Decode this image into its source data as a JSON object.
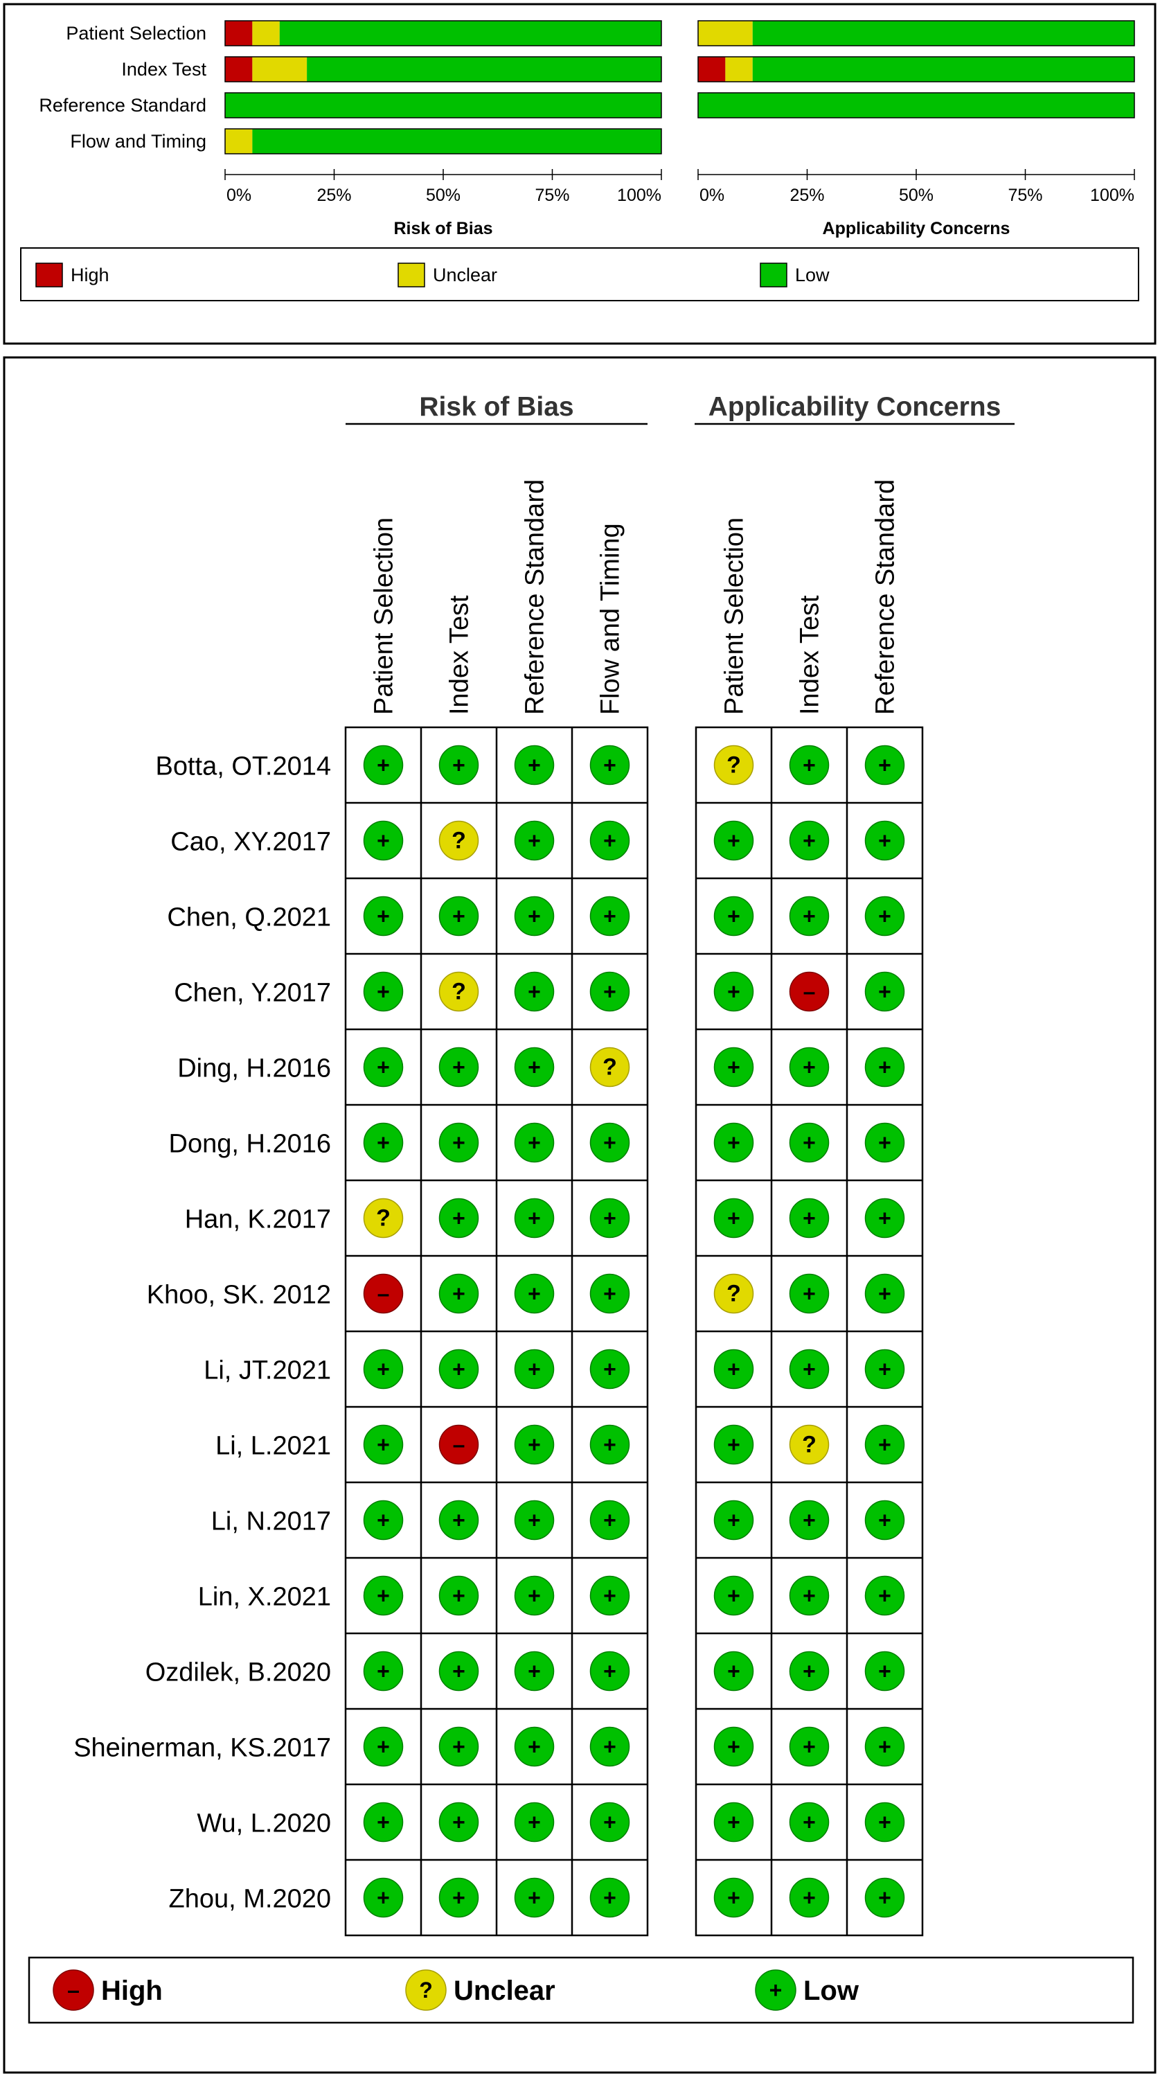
{
  "colors": {
    "high": "#c00000",
    "unclear": "#e1d900",
    "low": "#00c000",
    "high_dark": "#800000",
    "unclear_dark": "#a89f00",
    "low_dark": "#008000"
  },
  "chart_data": [
    {
      "type": "bar",
      "stacked": true,
      "orientation": "horizontal",
      "unit": "percent",
      "categories": [
        "Patient Selection",
        "Index Test",
        "Reference Standard",
        "Flow and Timing"
      ],
      "panels": [
        {
          "title": "Risk of Bias",
          "series": [
            {
              "name": "High",
              "values": [
                6.25,
                6.25,
                0,
                0
              ]
            },
            {
              "name": "Unclear",
              "values": [
                6.25,
                12.5,
                0,
                6.25
              ]
            },
            {
              "name": "Low",
              "values": [
                87.5,
                81.25,
                100,
                93.75
              ]
            }
          ]
        },
        {
          "title": "Applicability Concerns",
          "series": [
            {
              "name": "High",
              "values": [
                0,
                6.25,
                0
              ]
            },
            {
              "name": "Unclear",
              "values": [
                12.5,
                6.25,
                0
              ]
            },
            {
              "name": "Low",
              "values": [
                87.5,
                87.5,
                100
              ]
            }
          ]
        }
      ],
      "xlim": [
        0,
        100
      ],
      "xticks": [
        "0%",
        "25%",
        "50%",
        "75%",
        "100%"
      ],
      "legend": [
        {
          "key": "high",
          "label": "High"
        },
        {
          "key": "unclear",
          "label": "Unclear"
        },
        {
          "key": "low",
          "label": "Low"
        }
      ]
    },
    {
      "type": "table",
      "groups": [
        {
          "title": "Risk of Bias",
          "columns": [
            "Patient Selection",
            "Index Test",
            "Reference Standard",
            "Flow and Timing"
          ]
        },
        {
          "title": "Applicability Concerns",
          "columns": [
            "Patient Selection",
            "Index Test",
            "Reference Standard"
          ]
        }
      ],
      "rows": [
        {
          "study": "Botta, OT.2014",
          "rob": [
            "low",
            "low",
            "low",
            "low"
          ],
          "app": [
            "unclear",
            "low",
            "low"
          ]
        },
        {
          "study": "Cao, XY.2017",
          "rob": [
            "low",
            "unclear",
            "low",
            "low"
          ],
          "app": [
            "low",
            "low",
            "low"
          ]
        },
        {
          "study": "Chen, Q.2021",
          "rob": [
            "low",
            "low",
            "low",
            "low"
          ],
          "app": [
            "low",
            "low",
            "low"
          ]
        },
        {
          "study": "Chen, Y.2017",
          "rob": [
            "low",
            "unclear",
            "low",
            "low"
          ],
          "app": [
            "low",
            "high",
            "low"
          ]
        },
        {
          "study": "Ding, H.2016",
          "rob": [
            "low",
            "low",
            "low",
            "unclear"
          ],
          "app": [
            "low",
            "low",
            "low"
          ]
        },
        {
          "study": "Dong, H.2016",
          "rob": [
            "low",
            "low",
            "low",
            "low"
          ],
          "app": [
            "low",
            "low",
            "low"
          ]
        },
        {
          "study": "Han, K.2017",
          "rob": [
            "unclear",
            "low",
            "low",
            "low"
          ],
          "app": [
            "low",
            "low",
            "low"
          ]
        },
        {
          "study": "Khoo, SK. 2012",
          "rob": [
            "high",
            "low",
            "low",
            "low"
          ],
          "app": [
            "unclear",
            "low",
            "low"
          ]
        },
        {
          "study": "Li, JT.2021",
          "rob": [
            "low",
            "low",
            "low",
            "low"
          ],
          "app": [
            "low",
            "low",
            "low"
          ]
        },
        {
          "study": "Li, L.2021",
          "rob": [
            "low",
            "high",
            "low",
            "low"
          ],
          "app": [
            "low",
            "unclear",
            "low"
          ]
        },
        {
          "study": "Li, N.2017",
          "rob": [
            "low",
            "low",
            "low",
            "low"
          ],
          "app": [
            "low",
            "low",
            "low"
          ]
        },
        {
          "study": "Lin, X.2021",
          "rob": [
            "low",
            "low",
            "low",
            "low"
          ],
          "app": [
            "low",
            "low",
            "low"
          ]
        },
        {
          "study": "Ozdilek, B.2020",
          "rob": [
            "low",
            "low",
            "low",
            "low"
          ],
          "app": [
            "low",
            "low",
            "low"
          ]
        },
        {
          "study": "Sheinerman, KS.2017",
          "rob": [
            "low",
            "low",
            "low",
            "low"
          ],
          "app": [
            "low",
            "low",
            "low"
          ]
        },
        {
          "study": "Wu, L.2020",
          "rob": [
            "low",
            "low",
            "low",
            "low"
          ],
          "app": [
            "low",
            "low",
            "low"
          ]
        },
        {
          "study": "Zhou, M.2020",
          "rob": [
            "low",
            "low",
            "low",
            "low"
          ],
          "app": [
            "low",
            "low",
            "low"
          ]
        }
      ],
      "symbols": {
        "high": "–",
        "unclear": "?",
        "low": "+"
      },
      "legend": [
        {
          "key": "high",
          "label": "High"
        },
        {
          "key": "unclear",
          "label": "Unclear"
        },
        {
          "key": "low",
          "label": "Low"
        }
      ]
    }
  ]
}
